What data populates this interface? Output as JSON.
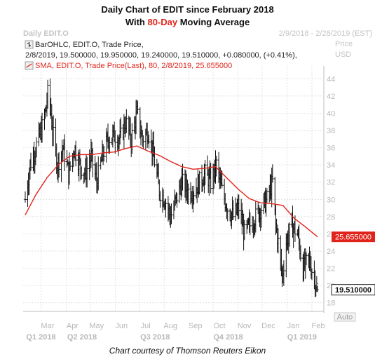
{
  "title": {
    "line1": "Daily Chart of EDIT since February 2018",
    "line2_pre": "With ",
    "line2_red": "80-Day",
    "line2_post": " Moving Average"
  },
  "header": {
    "instrument": "Daily EDIT.O",
    "date_range": "2/9/2018 - 2/28/2019 (EST)",
    "price_label": "Price",
    "currency_label": "USD",
    "ohlc_legend": "BarOHLC, EDIT.O, Trade Price,",
    "ohlc_values": "2/8/2019, 19.500000, 19.950000, 19.240000, 19.510000, +0.080000, (+0.41%),",
    "sma_legend": "SMA, EDIT.O, Trade Price(Last),  80, 2/8/2019, 25.655000"
  },
  "badges": {
    "sma_value": "25.655000",
    "last_price": "19.510000",
    "auto": "Auto"
  },
  "colors": {
    "bars": "#111111",
    "sma": "#e0241b",
    "grid": "#d4d4d4",
    "axis_text": "#b8b8b8",
    "badge_bg_sma": "#e0241b",
    "title_accent": "#e0241b"
  },
  "credit": "Chart courtesy of Thomson Reuters Eikon",
  "chart_data": {
    "type": "ohlc",
    "series": [
      {
        "name": "EDIT.O",
        "kind": "ohlc"
      },
      {
        "name": "SMA 80",
        "kind": "line"
      }
    ],
    "ylim": [
      17,
      45
    ],
    "y_ticks": [
      18,
      20,
      22,
      24,
      26,
      28,
      30,
      32,
      34,
      36,
      38,
      40,
      42,
      44
    ],
    "x_months": [
      "Mar",
      "Apr",
      "May",
      "Jun",
      "Jul",
      "Aug",
      "Sep",
      "Oct",
      "Nov",
      "Dec",
      "Jan",
      "Feb"
    ],
    "x_quarters": [
      "Q1 2018",
      "Q2 2018",
      "Q3 2018",
      "Q4 2018",
      "Q1 2019"
    ],
    "grid": true,
    "close_path": [
      [
        "2018-02-09",
        30
      ],
      [
        "2018-02-15",
        34
      ],
      [
        "2018-02-22",
        36
      ],
      [
        "2018-03-01",
        38
      ],
      [
        "2018-03-06",
        40
      ],
      [
        "2018-03-10",
        43
      ],
      [
        "2018-03-15",
        38
      ],
      [
        "2018-03-21",
        34
      ],
      [
        "2018-03-28",
        36
      ],
      [
        "2018-04-04",
        33
      ],
      [
        "2018-04-11",
        36
      ],
      [
        "2018-04-18",
        34
      ],
      [
        "2018-04-25",
        33
      ],
      [
        "2018-05-02",
        35
      ],
      [
        "2018-05-09",
        32
      ],
      [
        "2018-05-16",
        35
      ],
      [
        "2018-05-23",
        37
      ],
      [
        "2018-05-31",
        37.5
      ],
      [
        "2018-06-07",
        37
      ],
      [
        "2018-06-14",
        39
      ],
      [
        "2018-06-21",
        37
      ],
      [
        "2018-06-28",
        40
      ],
      [
        "2018-07-05",
        37
      ],
      [
        "2018-07-12",
        38
      ],
      [
        "2018-07-19",
        35
      ],
      [
        "2018-07-26",
        31
      ],
      [
        "2018-08-02",
        30
      ],
      [
        "2018-08-09",
        28
      ],
      [
        "2018-08-16",
        30
      ],
      [
        "2018-08-23",
        32
      ],
      [
        "2018-08-31",
        31
      ],
      [
        "2018-09-07",
        31
      ],
      [
        "2018-09-14",
        32
      ],
      [
        "2018-09-21",
        33
      ],
      [
        "2018-09-28",
        32
      ],
      [
        "2018-10-05",
        34
      ],
      [
        "2018-10-12",
        31
      ],
      [
        "2018-10-19",
        29
      ],
      [
        "2018-10-26",
        28
      ],
      [
        "2018-11-02",
        29
      ],
      [
        "2018-11-09",
        26
      ],
      [
        "2018-11-16",
        27
      ],
      [
        "2018-11-23",
        28
      ],
      [
        "2018-11-30",
        29
      ],
      [
        "2018-12-07",
        30
      ],
      [
        "2018-12-14",
        32
      ],
      [
        "2018-12-18",
        27
      ],
      [
        "2018-12-21",
        25
      ],
      [
        "2018-12-26",
        21
      ],
      [
        "2018-12-31",
        25
      ],
      [
        "2019-01-07",
        27
      ],
      [
        "2019-01-14",
        26
      ],
      [
        "2019-01-21",
        22
      ],
      [
        "2019-01-28",
        23
      ],
      [
        "2019-02-04",
        21
      ],
      [
        "2019-02-08",
        19.51
      ]
    ],
    "sma_path": [
      [
        "2018-02-09",
        28.2
      ],
      [
        "2018-02-22",
        30.5
      ],
      [
        "2018-03-08",
        32.5
      ],
      [
        "2018-03-22",
        34
      ],
      [
        "2018-04-05",
        35
      ],
      [
        "2018-04-19",
        35.2
      ],
      [
        "2018-05-03",
        35.2
      ],
      [
        "2018-05-17",
        35.4
      ],
      [
        "2018-05-31",
        35.5
      ],
      [
        "2018-06-14",
        35.9
      ],
      [
        "2018-06-28",
        36.2
      ],
      [
        "2018-07-12",
        35.6
      ],
      [
        "2018-07-26",
        35.1
      ],
      [
        "2018-08-09",
        34.4
      ],
      [
        "2018-08-23",
        33.8
      ],
      [
        "2018-09-06",
        33.5
      ],
      [
        "2018-09-20",
        33.6
      ],
      [
        "2018-10-04",
        33.8
      ],
      [
        "2018-10-18",
        32.5
      ],
      [
        "2018-11-01",
        31.2
      ],
      [
        "2018-11-15",
        30.1
      ],
      [
        "2018-11-29",
        29.6
      ],
      [
        "2018-12-13",
        29.5
      ],
      [
        "2018-12-27",
        29.3
      ],
      [
        "2019-01-10",
        27.8
      ],
      [
        "2019-01-24",
        26.8
      ],
      [
        "2019-02-08",
        25.655
      ]
    ],
    "last_bar": {
      "date": "2019-02-08",
      "open": 19.5,
      "high": 19.95,
      "low": 19.24,
      "close": 19.51
    },
    "sma_last": 25.655
  }
}
